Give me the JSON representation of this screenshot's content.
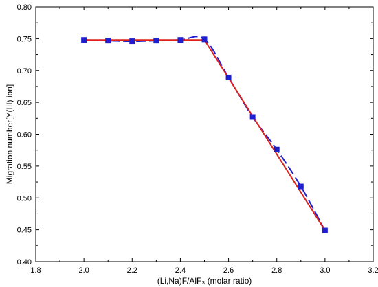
{
  "chart_data": {
    "type": "line",
    "xlabel": "(Li,Na)F/AlF₃ (molar ratio)",
    "ylabel": "Migration number[Y(III) ion]",
    "xlim": [
      1.8,
      3.2
    ],
    "ylim": [
      0.4,
      0.8
    ],
    "xticks": [
      "1.8",
      "2.0",
      "2.2",
      "2.4",
      "2.6",
      "2.8",
      "3.0",
      "3.2"
    ],
    "yticks": [
      "0.40",
      "0.45",
      "0.50",
      "0.55",
      "0.60",
      "0.65",
      "0.70",
      "0.75",
      "0.80"
    ],
    "grid": false,
    "legend": "none",
    "series": [
      {
        "style": "markers + dashed curve",
        "color": "#1f1fd0",
        "x": [
          2.0,
          2.1,
          2.2,
          2.3,
          2.4,
          2.5,
          2.6,
          2.7,
          2.8,
          2.9,
          3.0
        ],
        "y": [
          0.748,
          0.747,
          0.746,
          0.747,
          0.748,
          0.749,
          0.689,
          0.627,
          0.576,
          0.518,
          0.449
        ]
      },
      {
        "style": "solid line",
        "color": "#e0201c",
        "x": [
          2.0,
          2.5,
          3.0
        ],
        "y": [
          0.748,
          0.748,
          0.449
        ]
      }
    ]
  }
}
